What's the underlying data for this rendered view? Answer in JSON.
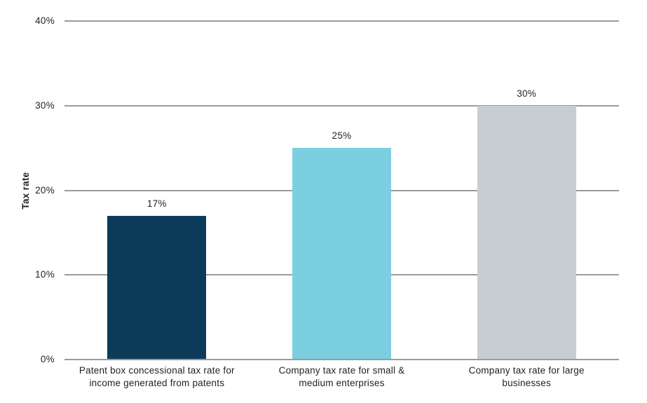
{
  "chart_data": {
    "type": "bar",
    "title": "",
    "categories": [
      "Patent box concessional tax rate for income generated from patents",
      "Company tax rate for small & medium enterprises",
      "Company tax rate for large businesses"
    ],
    "category_lines": [
      [
        "Patent box concessional tax rate for",
        "income generated from patents"
      ],
      [
        "Company tax rate for small &",
        "medium enterprises"
      ],
      [
        "Company tax rate for large",
        "businesses"
      ]
    ],
    "values": [
      17,
      25,
      30
    ],
    "value_labels": [
      "17%",
      "25%",
      "30%"
    ],
    "bar_colors": [
      "#0c3b59",
      "#7bcfe0",
      "#c7cdd3"
    ],
    "xlabel": "",
    "ylabel": "Tax rate",
    "ylim": [
      0,
      40
    ],
    "yticks": [
      0,
      10,
      20,
      30,
      40
    ],
    "ytick_labels": [
      "0%",
      "10%",
      "20%",
      "30%",
      "40%"
    ],
    "grid": "horizontal",
    "gridline_color": "#9b9b9b",
    "axis_line_color": "#9b9b9b",
    "text_color": "#1f1f1f",
    "background_color": "#ffffff",
    "legend": "none"
  }
}
